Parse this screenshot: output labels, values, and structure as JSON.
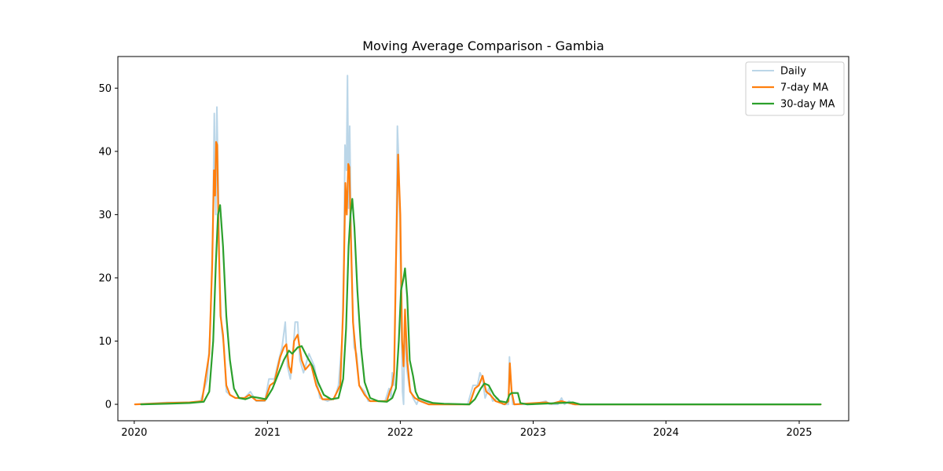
{
  "chart_data": {
    "type": "line",
    "title": "Moving Average Comparison - Gambia",
    "xlabel": "",
    "ylabel": "",
    "x_ticks": [
      "2020",
      "2021",
      "2022",
      "2023",
      "2024",
      "2025"
    ],
    "y_ticks": [
      "0",
      "10",
      "20",
      "30",
      "40",
      "50"
    ],
    "xlim": [
      "2019-11-17",
      "2025-05-17"
    ],
    "ylim": [
      -2.6,
      55
    ],
    "grid": false,
    "legend_position": "top-right",
    "series": [
      {
        "name": "Daily",
        "color": "#1f77b4",
        "points": [
          [
            "2020-01-03",
            0
          ],
          [
            "2020-04-01",
            0.3
          ],
          [
            "2020-06-01",
            0.3
          ],
          [
            "2020-07-01",
            0.5
          ],
          [
            "2020-07-20",
            4
          ],
          [
            "2020-07-28",
            12
          ],
          [
            "2020-08-04",
            28
          ],
          [
            "2020-08-08",
            46
          ],
          [
            "2020-08-12",
            30
          ],
          [
            "2020-08-15",
            47
          ],
          [
            "2020-08-19",
            34
          ],
          [
            "2020-08-23",
            19
          ],
          [
            "2020-08-28",
            12
          ],
          [
            "2020-09-04",
            9
          ],
          [
            "2020-09-10",
            2
          ],
          [
            "2020-09-20",
            1.5
          ],
          [
            "2020-10-05",
            1
          ],
          [
            "2020-10-30",
            1
          ],
          [
            "2020-11-15",
            2
          ],
          [
            "2020-12-01",
            0.5
          ],
          [
            "2020-12-25",
            0.5
          ],
          [
            "2021-01-05",
            4
          ],
          [
            "2021-01-20",
            4
          ],
          [
            "2021-02-01",
            7
          ],
          [
            "2021-02-10",
            9
          ],
          [
            "2021-02-19",
            13
          ],
          [
            "2021-02-25",
            6
          ],
          [
            "2021-03-05",
            4
          ],
          [
            "2021-03-12",
            8
          ],
          [
            "2021-03-18",
            13
          ],
          [
            "2021-03-25",
            13
          ],
          [
            "2021-03-31",
            7
          ],
          [
            "2021-04-10",
            5
          ],
          [
            "2021-04-25",
            8
          ],
          [
            "2021-05-10",
            6
          ],
          [
            "2021-05-25",
            1
          ],
          [
            "2021-06-15",
            0.5
          ],
          [
            "2021-07-05",
            1
          ],
          [
            "2021-07-15",
            3
          ],
          [
            "2021-07-25",
            10
          ],
          [
            "2021-07-30",
            23
          ],
          [
            "2021-08-02",
            41
          ],
          [
            "2021-08-06",
            37
          ],
          [
            "2021-08-09",
            52
          ],
          [
            "2021-08-12",
            31
          ],
          [
            "2021-08-15",
            44
          ],
          [
            "2021-08-19",
            26
          ],
          [
            "2021-08-23",
            16
          ],
          [
            "2021-08-27",
            9
          ],
          [
            "2021-09-03",
            8
          ],
          [
            "2021-09-10",
            3
          ],
          [
            "2021-09-25",
            2
          ],
          [
            "2021-10-05",
            0.5
          ],
          [
            "2021-10-30",
            0.5
          ],
          [
            "2021-11-20",
            0.5
          ],
          [
            "2021-12-01",
            2.5
          ],
          [
            "2021-12-07",
            1
          ],
          [
            "2021-12-10",
            5
          ],
          [
            "2021-12-15",
            3
          ],
          [
            "2021-12-20",
            20
          ],
          [
            "2021-12-24",
            44
          ],
          [
            "2021-12-28",
            38
          ],
          [
            "2022-01-03",
            16
          ],
          [
            "2022-01-07",
            2
          ],
          [
            "2022-01-10",
            0
          ],
          [
            "2022-01-13",
            14
          ],
          [
            "2022-01-18",
            6
          ],
          [
            "2022-01-25",
            3
          ],
          [
            "2022-02-05",
            1
          ],
          [
            "2022-02-15",
            0
          ],
          [
            "2022-02-22",
            1
          ],
          [
            "2022-03-05",
            0.5
          ],
          [
            "2022-04-01",
            0
          ],
          [
            "2022-07-05",
            0
          ],
          [
            "2022-07-20",
            3
          ],
          [
            "2022-08-01",
            3
          ],
          [
            "2022-08-08",
            5
          ],
          [
            "2022-08-15",
            4
          ],
          [
            "2022-08-22",
            1
          ],
          [
            "2022-09-01",
            2.5
          ],
          [
            "2022-09-12",
            0.5
          ],
          [
            "2022-09-25",
            1
          ],
          [
            "2022-10-10",
            0
          ],
          [
            "2022-10-25",
            0
          ],
          [
            "2022-10-28",
            7.5
          ],
          [
            "2022-10-31",
            4
          ],
          [
            "2022-11-06",
            0
          ],
          [
            "2022-12-31",
            0
          ],
          [
            "2023-02-05",
            0.5
          ],
          [
            "2023-02-15",
            0
          ],
          [
            "2023-03-10",
            0
          ],
          [
            "2023-03-20",
            1
          ],
          [
            "2023-03-28",
            0
          ],
          [
            "2023-04-10",
            0.5
          ],
          [
            "2023-04-20",
            0
          ],
          [
            "2025-03-01",
            0
          ]
        ]
      },
      {
        "name": "7-day MA",
        "color": "#ff7f0e",
        "points": [
          [
            "2020-01-03",
            0
          ],
          [
            "2020-04-01",
            0.2
          ],
          [
            "2020-06-01",
            0.3
          ],
          [
            "2020-07-05",
            0.5
          ],
          [
            "2020-07-25",
            8
          ],
          [
            "2020-08-02",
            22
          ],
          [
            "2020-08-07",
            37
          ],
          [
            "2020-08-10",
            33
          ],
          [
            "2020-08-13",
            41.5
          ],
          [
            "2020-08-16",
            41
          ],
          [
            "2020-08-20",
            26
          ],
          [
            "2020-08-25",
            14
          ],
          [
            "2020-09-01",
            11
          ],
          [
            "2020-09-10",
            3
          ],
          [
            "2020-09-20",
            1.5
          ],
          [
            "2020-10-05",
            1
          ],
          [
            "2020-10-30",
            1
          ],
          [
            "2020-11-12",
            1.5
          ],
          [
            "2020-12-01",
            0.6
          ],
          [
            "2020-12-25",
            0.6
          ],
          [
            "2021-01-08",
            3
          ],
          [
            "2021-01-20",
            3.5
          ],
          [
            "2021-02-05",
            7.5
          ],
          [
            "2021-02-15",
            9
          ],
          [
            "2021-02-22",
            9.5
          ],
          [
            "2021-03-01",
            6
          ],
          [
            "2021-03-07",
            5
          ],
          [
            "2021-03-15",
            10
          ],
          [
            "2021-03-25",
            11
          ],
          [
            "2021-04-05",
            7
          ],
          [
            "2021-04-15",
            5.5
          ],
          [
            "2021-04-30",
            6.5
          ],
          [
            "2021-05-15",
            3
          ],
          [
            "2021-06-01",
            0.8
          ],
          [
            "2021-07-01",
            0.8
          ],
          [
            "2021-07-20",
            3
          ],
          [
            "2021-07-28",
            15
          ],
          [
            "2021-08-03",
            35
          ],
          [
            "2021-08-07",
            30
          ],
          [
            "2021-08-11",
            38
          ],
          [
            "2021-08-14",
            37.5
          ],
          [
            "2021-08-18",
            27
          ],
          [
            "2021-08-24",
            13
          ],
          [
            "2021-09-01",
            8
          ],
          [
            "2021-09-10",
            3
          ],
          [
            "2021-09-25",
            1.5
          ],
          [
            "2021-10-10",
            0.5
          ],
          [
            "2021-11-25",
            0.5
          ],
          [
            "2021-12-03",
            2
          ],
          [
            "2021-12-10",
            3
          ],
          [
            "2021-12-15",
            5
          ],
          [
            "2021-12-20",
            22
          ],
          [
            "2021-12-26",
            39.5
          ],
          [
            "2022-01-01",
            30
          ],
          [
            "2022-01-06",
            10
          ],
          [
            "2022-01-10",
            6
          ],
          [
            "2022-01-14",
            15
          ],
          [
            "2022-01-20",
            7
          ],
          [
            "2022-01-28",
            2
          ],
          [
            "2022-02-10",
            1
          ],
          [
            "2022-02-25",
            0.5
          ],
          [
            "2022-03-20",
            0
          ],
          [
            "2022-07-10",
            0
          ],
          [
            "2022-07-25",
            2.5
          ],
          [
            "2022-08-05",
            3
          ],
          [
            "2022-08-15",
            4.5
          ],
          [
            "2022-08-25",
            2
          ],
          [
            "2022-09-05",
            1.5
          ],
          [
            "2022-09-20",
            0.5
          ],
          [
            "2022-10-15",
            0
          ],
          [
            "2022-10-25",
            0.5
          ],
          [
            "2022-10-29",
            6.5
          ],
          [
            "2022-11-03",
            2
          ],
          [
            "2022-11-10",
            0
          ],
          [
            "2023-02-05",
            0.3
          ],
          [
            "2023-02-20",
            0.1
          ],
          [
            "2023-03-20",
            0.5
          ],
          [
            "2023-04-01",
            0.3
          ],
          [
            "2023-04-25",
            0
          ],
          [
            "2025-03-01",
            0
          ]
        ]
      },
      {
        "name": "30-day MA",
        "color": "#2ca02c",
        "points": [
          [
            "2020-01-20",
            0
          ],
          [
            "2020-04-01",
            0.1
          ],
          [
            "2020-06-01",
            0.2
          ],
          [
            "2020-07-10",
            0.4
          ],
          [
            "2020-07-25",
            2
          ],
          [
            "2020-08-05",
            10
          ],
          [
            "2020-08-12",
            22
          ],
          [
            "2020-08-18",
            30
          ],
          [
            "2020-08-24",
            31.5
          ],
          [
            "2020-09-01",
            25
          ],
          [
            "2020-09-10",
            14
          ],
          [
            "2020-09-20",
            7
          ],
          [
            "2020-10-01",
            2.5
          ],
          [
            "2020-10-15",
            1
          ],
          [
            "2020-11-01",
            0.8
          ],
          [
            "2020-11-20",
            1.2
          ],
          [
            "2020-12-10",
            1
          ],
          [
            "2020-12-28",
            0.8
          ],
          [
            "2021-01-15",
            2.5
          ],
          [
            "2021-02-01",
            5
          ],
          [
            "2021-02-15",
            7
          ],
          [
            "2021-03-01",
            8.5
          ],
          [
            "2021-03-10",
            8
          ],
          [
            "2021-03-25",
            9
          ],
          [
            "2021-04-05",
            9.2
          ],
          [
            "2021-04-20",
            7.5
          ],
          [
            "2021-05-05",
            6
          ],
          [
            "2021-05-20",
            3.5
          ],
          [
            "2021-06-05",
            1.5
          ],
          [
            "2021-06-25",
            0.8
          ],
          [
            "2021-07-15",
            1
          ],
          [
            "2021-07-28",
            4
          ],
          [
            "2021-08-05",
            12
          ],
          [
            "2021-08-12",
            25
          ],
          [
            "2021-08-17",
            30
          ],
          [
            "2021-08-22",
            32.5
          ],
          [
            "2021-08-28",
            28
          ],
          [
            "2021-09-05",
            18
          ],
          [
            "2021-09-15",
            9
          ],
          [
            "2021-09-25",
            3.5
          ],
          [
            "2021-10-10",
            1
          ],
          [
            "2021-11-01",
            0.5
          ],
          [
            "2021-11-25",
            0.4
          ],
          [
            "2021-12-10",
            1
          ],
          [
            "2021-12-20",
            2.5
          ],
          [
            "2021-12-28",
            10
          ],
          [
            "2022-01-03",
            18
          ],
          [
            "2022-01-10",
            20
          ],
          [
            "2022-01-14",
            21.5
          ],
          [
            "2022-01-20",
            17
          ],
          [
            "2022-01-27",
            7
          ],
          [
            "2022-02-05",
            4.5
          ],
          [
            "2022-02-12",
            2
          ],
          [
            "2022-02-20",
            1
          ],
          [
            "2022-03-10",
            0.6
          ],
          [
            "2022-04-01",
            0.2
          ],
          [
            "2022-05-01",
            0.1
          ],
          [
            "2022-07-10",
            0
          ],
          [
            "2022-07-25",
            0.8
          ],
          [
            "2022-08-10",
            2.5
          ],
          [
            "2022-08-20",
            3.3
          ],
          [
            "2022-09-01",
            3
          ],
          [
            "2022-09-15",
            1.5
          ],
          [
            "2022-10-01",
            0.5
          ],
          [
            "2022-10-20",
            0.3
          ],
          [
            "2022-10-28",
            1.5
          ],
          [
            "2022-11-03",
            1.8
          ],
          [
            "2022-11-20",
            1.8
          ],
          [
            "2022-11-27",
            0.2
          ],
          [
            "2022-12-15",
            0
          ],
          [
            "2023-03-15",
            0.2
          ],
          [
            "2023-04-20",
            0.3
          ],
          [
            "2023-05-10",
            0
          ],
          [
            "2025-03-01",
            0
          ]
        ]
      }
    ]
  }
}
